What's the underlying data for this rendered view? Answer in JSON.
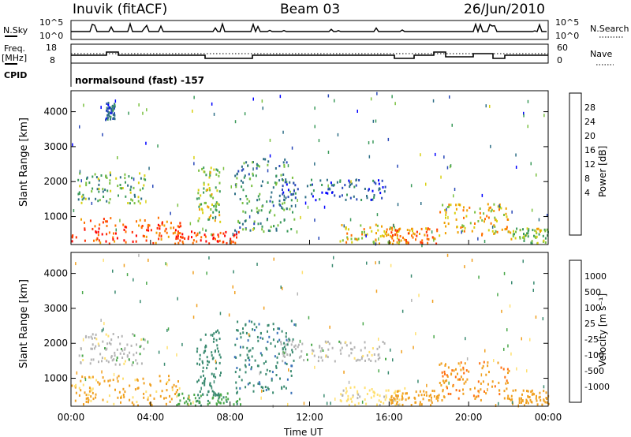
{
  "header": {
    "station": "Inuvik (fitACF)",
    "beam": "Beam 03",
    "date": "26/Jun/2010"
  },
  "top_panels": {
    "nsky_label": "N.Sky",
    "nsky_ticks": [
      "10^5",
      "10^0"
    ],
    "nsearch_label": "N.Search",
    "nsearch_ticks": [
      "10^5",
      "10^0"
    ],
    "freq_label": "Freq.",
    "freq_unit": "[MHz]",
    "freq_ticks": [
      "18",
      "8"
    ],
    "nave_label": "Nave",
    "nave_ticks": [
      "60",
      "0"
    ],
    "cpid_label": "CPID",
    "cpid_value": "normalsound (fast) -157"
  },
  "power_scale": {
    "label": "Power [dB]",
    "ticks": [
      "28",
      "24",
      "20",
      "16",
      "12",
      "8",
      "4"
    ],
    "colors": [
      "#0000ff",
      "#2848b8",
      "#2d6e86",
      "#3a9a5a",
      "#7ac040",
      "#d8d010",
      "#f0a000",
      "#ff7000",
      "#ff3000",
      "#ff0000"
    ]
  },
  "velocity_scale": {
    "label": "Velocity [m s⁻¹]",
    "ticks": [
      "1000",
      "500",
      "100",
      "25",
      "-25",
      "-100",
      "-500",
      "-1000"
    ],
    "colors": [
      "#2a3fcc",
      "#3a72b8",
      "#3a8a70",
      "#4aa84a",
      "#b4b4b4",
      "#ffe070",
      "#f0a020",
      "#ff7010",
      "#ff2a00"
    ]
  },
  "chart_data": [
    {
      "type": "heatmap",
      "title": "",
      "xlabel": "",
      "ylabel": "Slant Range [km]",
      "xlim": [
        0,
        24
      ],
      "ylim": [
        200,
        4600
      ],
      "yticks": [
        "1000",
        "2000",
        "3000",
        "4000"
      ],
      "quantity": "Power [dB]",
      "features": [
        {
          "t": [
            0,
            5.5
          ],
          "r": [
            250,
            1000
          ],
          "v": 24
        },
        {
          "t": [
            0.3,
            3.7
          ],
          "r": [
            1400,
            2300
          ],
          "v": 12
        },
        {
          "t": [
            1.7,
            2.2
          ],
          "r": [
            3800,
            4300
          ],
          "v": 6
        },
        {
          "t": [
            5.2,
            8.5
          ],
          "r": [
            250,
            600
          ],
          "v": 26
        },
        {
          "t": [
            6.3,
            7.5
          ],
          "r": [
            500,
            2500
          ],
          "v": 14
        },
        {
          "t": [
            8.2,
            11.2
          ],
          "r": [
            600,
            2700
          ],
          "v": 10
        },
        {
          "t": [
            10.5,
            15.8
          ],
          "r": [
            1500,
            2100
          ],
          "v": 6
        },
        {
          "t": [
            13.5,
            16.8
          ],
          "r": [
            250,
            800
          ],
          "v": 18
        },
        {
          "t": [
            16,
            18.5
          ],
          "r": [
            250,
            700
          ],
          "v": 22
        },
        {
          "t": [
            18.5,
            22
          ],
          "r": [
            500,
            1400
          ],
          "v": 18
        },
        {
          "t": [
            22,
            24
          ],
          "r": [
            250,
            700
          ],
          "v": 14
        }
      ]
    },
    {
      "type": "heatmap",
      "title": "",
      "xlabel": "Time UT",
      "ylabel": "Slant Range [km]",
      "xlim": [
        0,
        24
      ],
      "ylim": [
        200,
        4600
      ],
      "yticks": [
        "1000",
        "2000",
        "3000",
        "4000"
      ],
      "xticks": [
        "00:00",
        "04:00",
        "08:00",
        "12:00",
        "16:00",
        "20:00",
        "00:00"
      ],
      "quantity": "Velocity [m s⁻¹]",
      "features": [
        {
          "t": [
            0,
            5.5
          ],
          "r": [
            250,
            1100
          ],
          "v": -150
        },
        {
          "t": [
            0.3,
            3.7
          ],
          "r": [
            1400,
            2300
          ],
          "v": 0
        },
        {
          "t": [
            5.2,
            8.5
          ],
          "r": [
            250,
            600
          ],
          "v": 80
        },
        {
          "t": [
            6.3,
            7.5
          ],
          "r": [
            500,
            2500
          ],
          "v": 300
        },
        {
          "t": [
            8.2,
            11.2
          ],
          "r": [
            600,
            2700
          ],
          "v": 400
        },
        {
          "t": [
            10.5,
            15.8
          ],
          "r": [
            1500,
            2100
          ],
          "v": 0
        },
        {
          "t": [
            13.5,
            16.8
          ],
          "r": [
            250,
            800
          ],
          "v": -50
        },
        {
          "t": [
            16,
            18.5
          ],
          "r": [
            250,
            700
          ],
          "v": -300
        },
        {
          "t": [
            18.5,
            22
          ],
          "r": [
            400,
            1500
          ],
          "v": -400
        },
        {
          "t": [
            22,
            24
          ],
          "r": [
            250,
            700
          ],
          "v": -200
        }
      ]
    }
  ]
}
